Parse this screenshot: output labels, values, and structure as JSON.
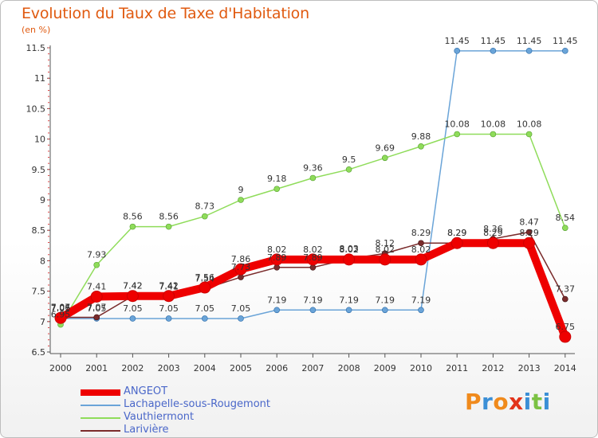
{
  "header": {
    "title": "Evolution du Taux de Taxe d'Habitation",
    "unit": "(en %)"
  },
  "brand": {
    "text": "Proxiti",
    "letters": [
      "P",
      "r",
      "o",
      "x",
      "i",
      "t",
      "i"
    ],
    "colors": [
      "#f08a1c",
      "#3b8fd6",
      "#f08a1c",
      "#e2331b",
      "#3b8fd6",
      "#7cc243",
      "#3b8fd6"
    ]
  },
  "chart_data": {
    "type": "line",
    "x": [
      "2000",
      "2001",
      "2002",
      "2003",
      "2004",
      "2005",
      "2006",
      "2007",
      "2008",
      "2009",
      "2010",
      "2011",
      "2012",
      "2013",
      "2014"
    ],
    "y_ticks": [
      "6.5",
      "7",
      "7.5",
      "8",
      "8.5",
      "9",
      "9.5",
      "10",
      "10.5",
      "11",
      "11.5"
    ],
    "ylim": [
      6.5,
      11.5
    ],
    "grid": false,
    "legend_position": "bottom-left",
    "series": [
      {
        "name": "ANGEOT",
        "color": "#ee0000",
        "values": [
          7.06,
          7.41,
          7.42,
          7.42,
          7.56,
          7.86,
          8.02,
          8.02,
          8.02,
          8.02,
          8.02,
          8.29,
          8.29,
          8.29,
          6.75
        ],
        "labels": [
          "7.06",
          "7.41",
          "7.42",
          "7.42",
          "7.56",
          "7.86",
          "8.02",
          "8.02",
          "8.02",
          "8.02",
          "8.02",
          "8.29",
          "8.29",
          "8.29",
          "6.75"
        ]
      },
      {
        "name": "Lachapelle-sous-Rougemont",
        "color": "#6aa4d8",
        "values": [
          7.05,
          7.05,
          7.05,
          7.05,
          7.05,
          7.05,
          7.19,
          7.19,
          7.19,
          7.19,
          7.19,
          11.45,
          11.45,
          11.45,
          11.45
        ],
        "labels": [
          "7.05",
          "7.05",
          "7.05",
          "7.05",
          "7.05",
          "7.05",
          "7.19",
          "7.19",
          "7.19",
          "7.19",
          "7.19",
          "11.45",
          "11.45",
          "11.45",
          "11.45"
        ]
      },
      {
        "name": "Vauthiermont",
        "color": "#8fdc5a",
        "values": [
          6.95,
          7.93,
          8.56,
          8.56,
          8.73,
          9,
          9.18,
          9.36,
          9.5,
          9.69,
          9.88,
          10.08,
          10.08,
          10.08,
          8.54
        ],
        "labels": [
          "6.95",
          "7.93",
          "8.56",
          "8.56",
          "8.73",
          "9",
          "9.18",
          "9.36",
          "9.5",
          "9.69",
          "9.88",
          "10.08",
          "10.08",
          "10.08",
          "8.54"
        ]
      },
      {
        "name": "Larivière",
        "color": "#7a2b2b",
        "values": [
          7.07,
          7.07,
          7.42,
          7.41,
          7.54,
          7.73,
          7.89,
          7.89,
          8.03,
          8.12,
          8.29,
          8.29,
          8.36,
          8.47,
          7.37
        ],
        "labels": [
          "7.07",
          "7.07",
          "7.42",
          "7.41",
          "7.54",
          "7.73",
          "7.89",
          "7.89",
          "8.03",
          "8.12",
          "8.29",
          "8.29",
          "8.36",
          "8.47",
          "7.37"
        ]
      }
    ]
  }
}
